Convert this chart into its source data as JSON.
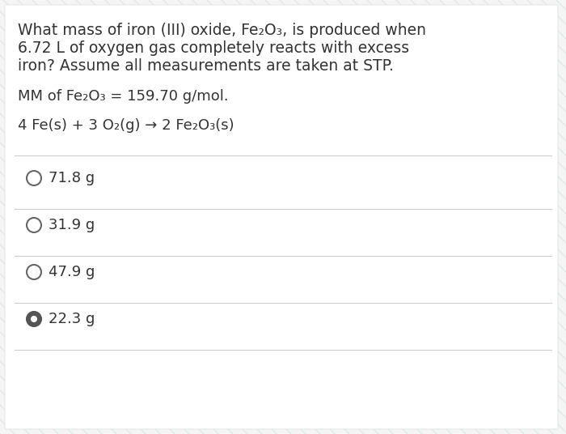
{
  "background_color": "#f5f5f5",
  "panel_color": "#ffffff",
  "text_color": "#333333",
  "title_lines": [
    "What mass of iron (III) oxide, Fe₂O₃, is produced when",
    "6.72 L of oxygen gas completely reacts with excess",
    "iron? Assume all measurements are taken at STP."
  ],
  "mm_line": "MM of Fe₂O₃ = 159.70 g/mol.",
  "reaction_line": "4 Fe(s) + 3 O₂(g) → 2 Fe₂O₃(s)",
  "choices": [
    "71.8 g",
    "31.9 g",
    "47.9 g",
    "22.3 g"
  ],
  "selected_index": 3,
  "divider_color": "#cccccc",
  "circle_color": "#666666",
  "selected_fill": "#555555",
  "font_size_title": 13.5,
  "font_size_body": 13.0,
  "font_size_choice": 13.0
}
